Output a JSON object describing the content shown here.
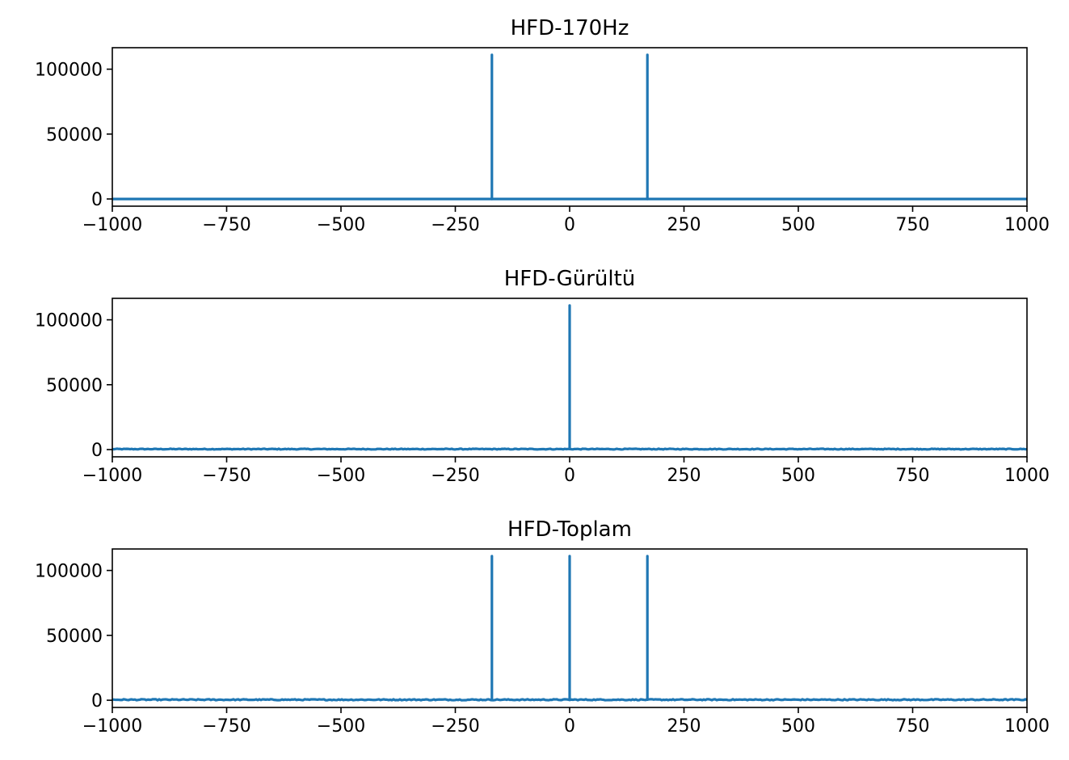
{
  "chart_data": [
    {
      "type": "line",
      "title": "HFD-170Hz",
      "xlabel": "",
      "ylabel": "",
      "xlim": [
        -1000,
        1000
      ],
      "ylim": [
        -5550,
        116550
      ],
      "x_ticks": [
        -1000,
        -750,
        -500,
        -250,
        0,
        250,
        500,
        750,
        1000
      ],
      "x_tick_labels": [
        "−1000",
        "−750",
        "−500",
        "−250",
        "0",
        "250",
        "500",
        "750",
        "1000"
      ],
      "y_ticks": [
        0,
        50000,
        100000
      ],
      "y_tick_labels": [
        "0",
        "50000",
        "100000"
      ],
      "grid": false,
      "series": [
        {
          "color": "#1f77b4",
          "baseline": 0,
          "peaks": [
            {
              "x": -170,
              "y": 111000
            },
            {
              "x": 170,
              "y": 111000
            }
          ]
        }
      ]
    },
    {
      "type": "line",
      "title": "HFD-Gürültü",
      "xlabel": "",
      "ylabel": "",
      "xlim": [
        -1000,
        1000
      ],
      "ylim": [
        -5550,
        116550
      ],
      "x_ticks": [
        -1000,
        -750,
        -500,
        -250,
        0,
        250,
        500,
        750,
        1000
      ],
      "x_tick_labels": [
        "−1000",
        "−750",
        "−500",
        "−250",
        "0",
        "250",
        "500",
        "750",
        "1000"
      ],
      "y_ticks": [
        0,
        50000,
        100000
      ],
      "y_tick_labels": [
        "0",
        "50000",
        "100000"
      ],
      "grid": false,
      "series": [
        {
          "color": "#1f77b4",
          "baseline": 400,
          "noise": 300,
          "peaks": [
            {
              "x": 0,
              "y": 111000
            }
          ]
        }
      ]
    },
    {
      "type": "line",
      "title": "HFD-Toplam",
      "xlabel": "",
      "ylabel": "",
      "xlim": [
        -1000,
        1000
      ],
      "ylim": [
        -5550,
        116550
      ],
      "x_ticks": [
        -1000,
        -750,
        -500,
        -250,
        0,
        250,
        500,
        750,
        1000
      ],
      "x_tick_labels": [
        "−1000",
        "−750",
        "−500",
        "−250",
        "0",
        "250",
        "500",
        "750",
        "1000"
      ],
      "y_ticks": [
        0,
        50000,
        100000
      ],
      "y_tick_labels": [
        "0",
        "50000",
        "100000"
      ],
      "grid": false,
      "series": [
        {
          "color": "#1f77b4",
          "baseline": 400,
          "noise": 400,
          "peaks": [
            {
              "x": -170,
              "y": 111000
            },
            {
              "x": 0,
              "y": 111000
            },
            {
              "x": 170,
              "y": 111000
            }
          ]
        }
      ]
    }
  ]
}
